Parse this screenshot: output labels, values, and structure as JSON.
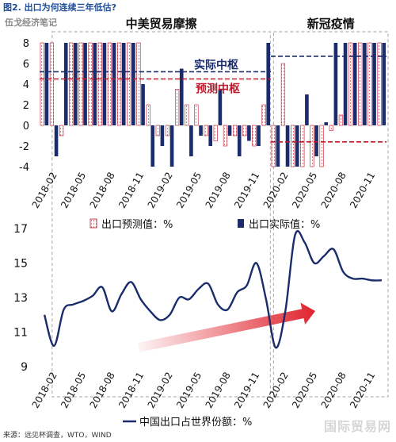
{
  "figure_title": "图2. 出口为何连续三年低估?",
  "watermark_topleft": "伍戈经济笔记",
  "watermark_bottomright": "国际贸易网",
  "source": "来源：远见杯调查，WTO，WIND",
  "colors": {
    "forecast": "#c0182a",
    "actual": "#1a2c6b",
    "actual_pivot": "#1a2c6b",
    "forecast_pivot": "#c0182a",
    "line": "#1a2c6b",
    "arrow": "#e0242e",
    "title": "#1f4e9a"
  },
  "chart_data": [
    {
      "type": "bar",
      "ylim": [
        -4,
        8
      ],
      "yticks": [
        -4,
        -2,
        0,
        2,
        4,
        6,
        8
      ],
      "x_tick_labels": [
        "2018-02",
        "2018-05",
        "2018-08",
        "2018-11",
        "2019-02",
        "2019-05",
        "2019-08",
        "2019-11",
        "2020-02",
        "2020-05",
        "2020-08",
        "2020-11"
      ],
      "period_labels": [
        "中美贸易摩擦",
        "新冠疫情"
      ],
      "annotations": [
        "实际中枢",
        "预测中枢"
      ],
      "legend": [
        "出口预测值：%",
        "出口实际值：%"
      ],
      "categories": [
        "2018-01",
        "2018-02",
        "2018-03",
        "2018-04",
        "2018-05",
        "2018-06",
        "2018-07",
        "2018-08",
        "2018-09",
        "2018-10",
        "2018-11",
        "2018-12",
        "2019-01",
        "2019-02",
        "2019-03",
        "2019-04",
        "2019-05",
        "2019-06",
        "2019-07",
        "2019-08",
        "2019-09",
        "2019-10",
        "2019-11",
        "2019-12",
        "2020-01",
        "2020-02",
        "2020-03",
        "2020-04",
        "2020-05",
        "2020-06",
        "2020-07",
        "2020-08",
        "2020-09",
        "2020-10",
        "2020-11",
        "2020-12"
      ],
      "series": [
        {
          "name": "出口预测值：%",
          "values": [
            8,
            8,
            -1,
            8,
            8,
            8,
            8,
            8,
            8,
            8,
            8,
            2,
            -1,
            -1,
            3.5,
            2,
            2,
            -1,
            -1.5,
            -2,
            -1,
            -1,
            -2,
            2,
            -4,
            6,
            -4,
            -4,
            -4,
            -4,
            -0.5,
            1,
            8,
            8,
            8,
            8
          ]
        },
        {
          "name": "出口实际值：%",
          "values": [
            8,
            -3,
            8,
            8,
            8,
            8,
            8,
            8,
            8,
            8,
            4,
            -4,
            -2,
            -4,
            5.5,
            -3,
            -1,
            -2,
            3.5,
            -1,
            -3,
            -1.5,
            -2,
            8,
            -4,
            -4,
            -4,
            3,
            -3,
            0.3,
            8,
            8,
            8,
            8,
            8,
            8
          ]
        }
      ],
      "pivots": [
        {
          "name": "实际中枢",
          "segments": [
            {
              "from": "2018-01",
              "to": "2019-12",
              "value": 5.2
            },
            {
              "from": "2020-01",
              "to": "2020-12",
              "value": 6.7
            }
          ]
        },
        {
          "name": "预测中枢",
          "segments": [
            {
              "from": "2018-01",
              "to": "2019-12",
              "value": 4.5
            },
            {
              "from": "2020-01",
              "to": "2020-12",
              "value": -1.6
            }
          ]
        }
      ]
    },
    {
      "type": "line",
      "ylim": [
        9,
        17
      ],
      "yticks": [
        9,
        11,
        13,
        15,
        17
      ],
      "x_tick_labels": [
        "2018-02",
        "2018-05",
        "2018-08",
        "2018-11",
        "2019-02",
        "2019-05",
        "2019-08",
        "2019-11",
        "2020-02",
        "2020-05",
        "2020-08",
        "2020-11"
      ],
      "legend": [
        "中国出口占世界份额：%"
      ],
      "categories": [
        "2018-01",
        "2018-02",
        "2018-03",
        "2018-04",
        "2018-05",
        "2018-06",
        "2018-07",
        "2018-08",
        "2018-09",
        "2018-10",
        "2018-11",
        "2018-12",
        "2019-01",
        "2019-02",
        "2019-03",
        "2019-04",
        "2019-05",
        "2019-06",
        "2019-07",
        "2019-08",
        "2019-09",
        "2019-10",
        "2019-11",
        "2019-12",
        "2020-01",
        "2020-02",
        "2020-03",
        "2020-04",
        "2020-05",
        "2020-06",
        "2020-07",
        "2020-08",
        "2020-09",
        "2020-10",
        "2020-11",
        "2020-12"
      ],
      "series": [
        {
          "name": "中国出口占世界份额：%",
          "values": [
            12.0,
            10.2,
            12.3,
            12.6,
            12.8,
            13.1,
            13.6,
            12.2,
            13.2,
            13.9,
            12.9,
            12.2,
            11.7,
            12.0,
            13.0,
            12.9,
            13.5,
            13.8,
            12.6,
            12.3,
            13.3,
            13.7,
            15.0,
            12.9,
            10.1,
            12.2,
            16.6,
            16.2,
            15.0,
            15.4,
            15.8,
            14.5,
            14.1,
            14.1,
            14.0,
            14.0
          ]
        }
      ]
    }
  ]
}
